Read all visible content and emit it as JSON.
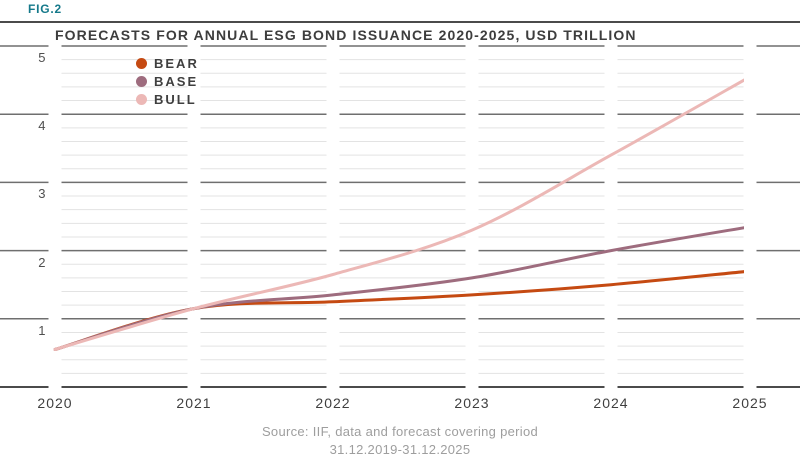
{
  "figure": {
    "label": "FIG.2"
  },
  "chart_data": {
    "type": "line",
    "title": "FORECASTS FOR ANNUAL ESG BOND ISSUANCE 2020-2025, USD TRILLION",
    "xlabel": "",
    "ylabel": "USD trillion",
    "x_categories": [
      "2020",
      "2021",
      "2022",
      "2023",
      "2024",
      "2025"
    ],
    "y_tick_labels": [
      "5",
      "4",
      "3",
      "2",
      "1"
    ],
    "ylim": [
      0,
      5
    ],
    "minor_grid_step": 0.2,
    "grid": true,
    "legend_position": "top-left",
    "series": [
      {
        "name": "BEAR",
        "color": "#c54a12",
        "values": [
          0.55,
          1.15,
          1.25,
          1.35,
          1.5,
          1.7
        ]
      },
      {
        "name": "BASE",
        "color": "#9e6c7e",
        "values": [
          0.55,
          1.15,
          1.35,
          1.6,
          2.0,
          2.35
        ]
      },
      {
        "name": "BULL",
        "color": "#ecb8b6",
        "values": [
          0.55,
          1.15,
          1.65,
          2.3,
          3.4,
          4.55
        ]
      }
    ]
  },
  "source": {
    "line1": "Source: IIF, data and forecast covering period",
    "line2": "31.12.2019-31.12.2025"
  },
  "colors": {
    "figure_label": "#15798a",
    "title_text": "#3d3d3d",
    "grid_major": "#6f6f6f",
    "grid_strong": "#4b4b4b",
    "grid_minor": "#e3e3e3",
    "tick_label": "#4a4a4a",
    "source_text": "#9e9e9e",
    "background": "#ffffff"
  }
}
